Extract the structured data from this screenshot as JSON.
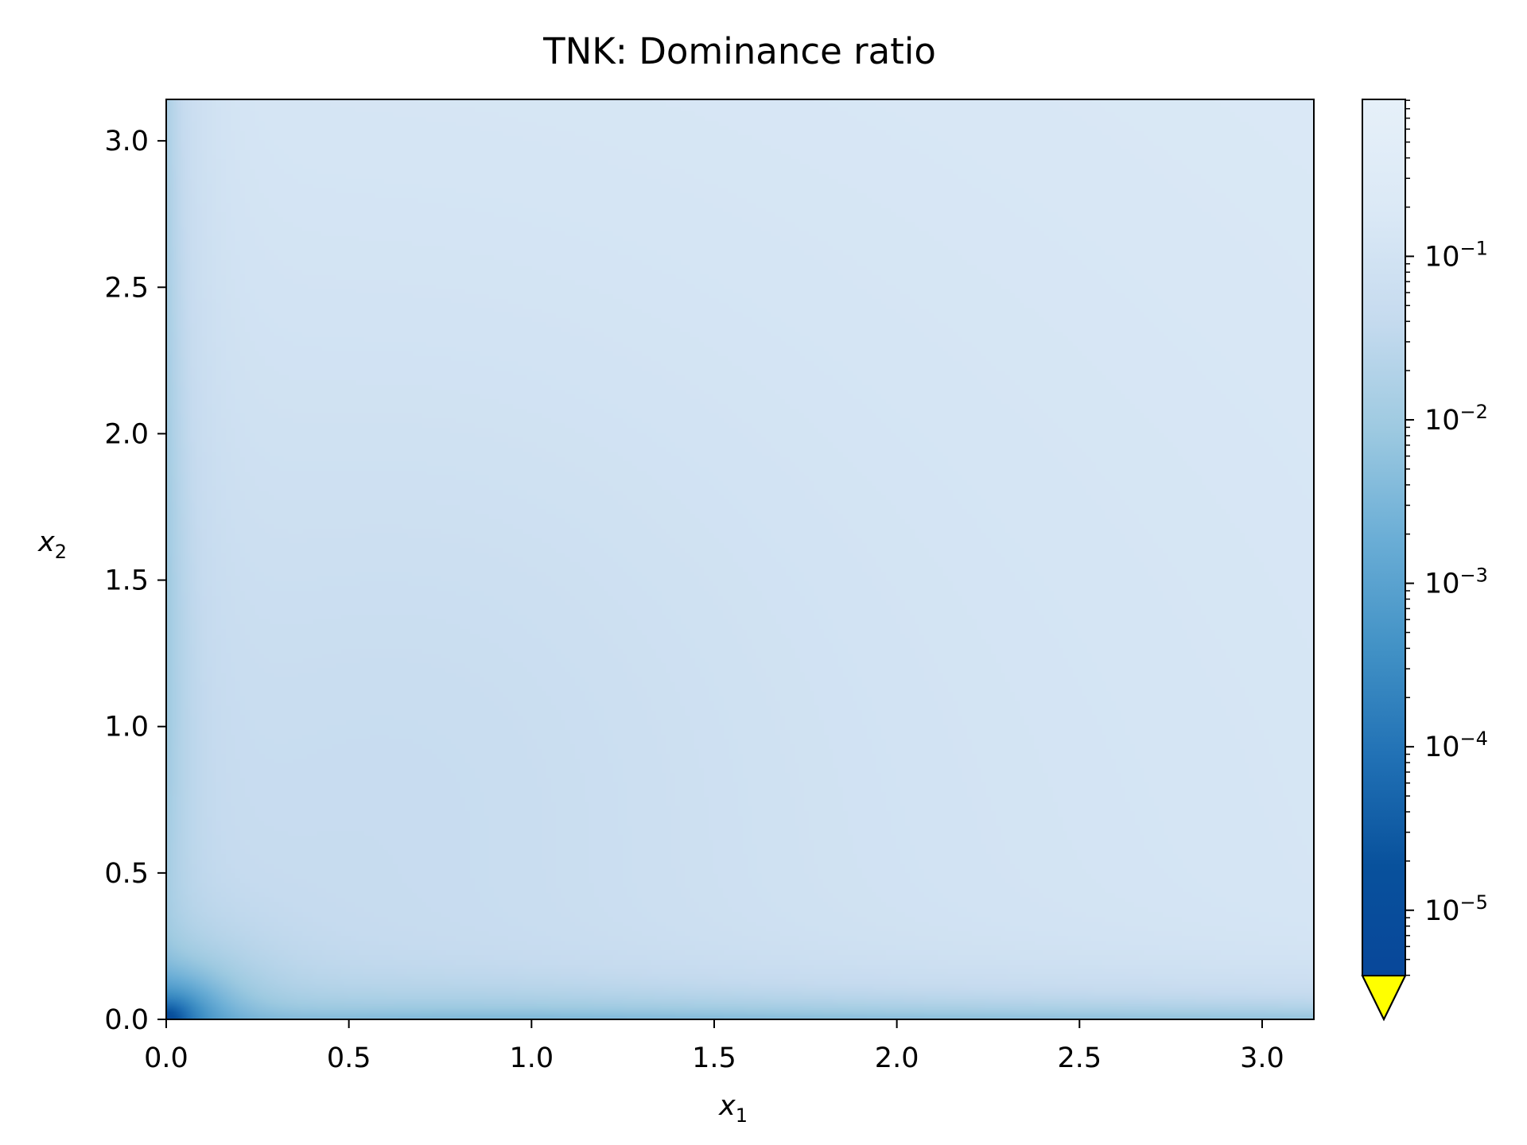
{
  "chart_data": {
    "type": "heatmap",
    "title": "TNK: Dominance ratio",
    "xlabel": {
      "base": "x",
      "sub": "1"
    },
    "ylabel": {
      "base": "x",
      "sub": "2"
    },
    "xlim": [
      0,
      3.14159
    ],
    "ylim": [
      0,
      3.14159
    ],
    "x_ticks": [
      0.0,
      0.5,
      1.0,
      1.5,
      2.0,
      2.5,
      3.0
    ],
    "x_tick_labels": [
      "0.0",
      "0.5",
      "1.0",
      "1.5",
      "2.0",
      "2.5",
      "3.0"
    ],
    "y_ticks": [
      0.0,
      0.5,
      1.0,
      1.5,
      2.0,
      2.5,
      3.0
    ],
    "y_tick_labels": [
      "0.0",
      "0.5",
      "1.0",
      "1.5",
      "2.0",
      "2.5",
      "3.0"
    ],
    "colormap": "Blues",
    "colorbar": {
      "scale": "log",
      "range_exponent": [
        -5.4,
        -0.04
      ],
      "ticks": [
        {
          "exponent": -1,
          "base": "10",
          "sup": "−1"
        },
        {
          "exponent": -2,
          "base": "10",
          "sup": "−2"
        },
        {
          "exponent": -3,
          "base": "10",
          "sup": "−3"
        },
        {
          "exponent": -4,
          "base": "10",
          "sup": "−4"
        },
        {
          "exponent": -5,
          "base": "10",
          "sup": "−5"
        }
      ],
      "extend": "min",
      "under_color": "#ffff00"
    },
    "grid": false
  }
}
